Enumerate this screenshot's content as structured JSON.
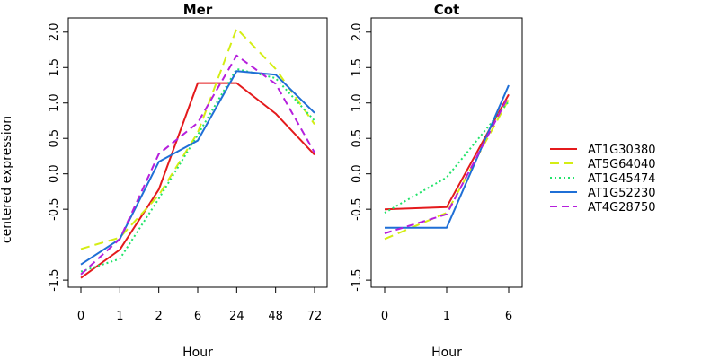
{
  "colors": {
    "AT1G30380": "#e41a1c",
    "AT5G64040": "#d4ed14",
    "AT1G45474": "#22e36a",
    "AT1G52230": "#1f6fd6",
    "AT4G28750": "#b51fdc"
  },
  "chart_data": [
    {
      "type": "line",
      "title": "Mer",
      "xlabel": "Hour",
      "ylabel": "centered expression",
      "categories": [
        "0",
        "1",
        "2",
        "6",
        "24",
        "48",
        "72"
      ],
      "ylim": [
        -1.6,
        2.2
      ],
      "yticks": [
        "-1.5",
        "-0.5",
        "0.0",
        "0.5",
        "1.0",
        "1.5",
        "2.0"
      ],
      "ytick_values": [
        -1.5,
        -0.5,
        0.0,
        0.5,
        1.0,
        1.5,
        2.0
      ],
      "series": [
        {
          "name": "AT1G30380",
          "style": "solid",
          "values": [
            -1.47,
            -1.07,
            -0.22,
            1.28,
            1.28,
            0.85,
            0.27
          ]
        },
        {
          "name": "AT5G64040",
          "style": "longdash",
          "values": [
            -1.06,
            -0.9,
            -0.3,
            0.58,
            2.05,
            1.48,
            0.7
          ]
        },
        {
          "name": "AT1G45474",
          "style": "dotted",
          "values": [
            -1.38,
            -1.2,
            -0.35,
            0.55,
            1.48,
            1.35,
            0.75
          ]
        },
        {
          "name": "AT1G52230",
          "style": "solid",
          "values": [
            -1.28,
            -0.92,
            0.17,
            0.47,
            1.45,
            1.4,
            0.86
          ]
        },
        {
          "name": "AT4G28750",
          "style": "dashed",
          "values": [
            -1.42,
            -0.92,
            0.28,
            0.72,
            1.67,
            1.27,
            0.3
          ]
        }
      ]
    },
    {
      "type": "line",
      "title": "Cot",
      "xlabel": "Hour",
      "categories": [
        "0",
        "1",
        "6"
      ],
      "ylim": [
        -1.6,
        2.2
      ],
      "yticks": [
        "-1.5",
        "-0.5",
        "0.0",
        "0.5",
        "1.0",
        "1.5",
        "2.0"
      ],
      "ytick_values": [
        -1.5,
        -0.5,
        0.0,
        0.5,
        1.0,
        1.5,
        2.0
      ],
      "series": [
        {
          "name": "AT1G30380",
          "style": "solid",
          "values": [
            -0.5,
            -0.47,
            1.12
          ]
        },
        {
          "name": "AT5G64040",
          "style": "longdash",
          "values": [
            -0.92,
            -0.55,
            1.05
          ]
        },
        {
          "name": "AT1G45474",
          "style": "dotted",
          "values": [
            -0.55,
            -0.05,
            1.02
          ]
        },
        {
          "name": "AT1G52230",
          "style": "solid",
          "values": [
            -0.76,
            -0.76,
            1.25
          ]
        },
        {
          "name": "AT4G28750",
          "style": "dashed",
          "values": [
            -0.84,
            -0.57,
            1.1
          ]
        }
      ]
    }
  ],
  "legend": {
    "position": "right",
    "items": [
      "AT1G30380",
      "AT5G64040",
      "AT1G45474",
      "AT1G52230",
      "AT4G28750"
    ]
  }
}
